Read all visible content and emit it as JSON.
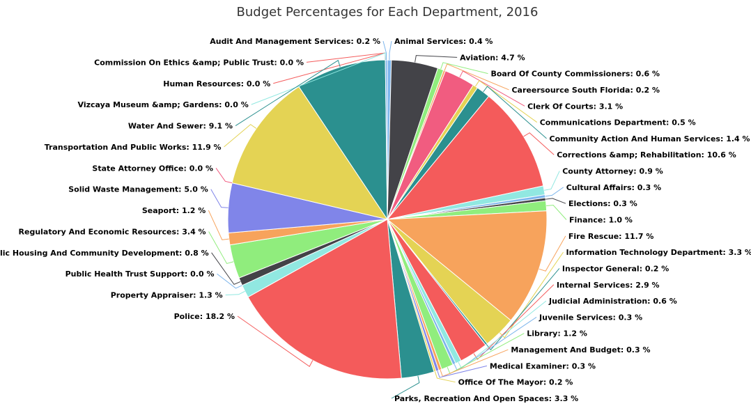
{
  "chart_data": {
    "type": "pie",
    "title": "Budget Percentages for Each Department, 2016",
    "unit": "%",
    "slices": [
      {
        "name": "Animal Services",
        "value": 0.4,
        "color": "#7cb5ec"
      },
      {
        "name": "Aviation",
        "value": 4.7,
        "color": "#434348"
      },
      {
        "name": "Board Of County Commissioners",
        "value": 0.6,
        "color": "#90ed7d"
      },
      {
        "name": "Careersource South Florida",
        "value": 0.2,
        "color": "#f7a35c"
      },
      {
        "name": "Clerk Of Courts",
        "value": 3.1,
        "color": "#f15c80"
      },
      {
        "name": "Communications Department",
        "value": 0.5,
        "color": "#e4d354"
      },
      {
        "name": "Community Action And Human Services",
        "value": 1.4,
        "color": "#2b908f"
      },
      {
        "name": "Corrections &amp; Rehabilitation",
        "value": 10.6,
        "color": "#f45b5b"
      },
      {
        "name": "County Attorney",
        "value": 0.9,
        "color": "#91e8e1"
      },
      {
        "name": "Cultural Affairs",
        "value": 0.3,
        "color": "#7cb5ec"
      },
      {
        "name": "Elections",
        "value": 0.3,
        "color": "#434348"
      },
      {
        "name": "Finance",
        "value": 1.0,
        "color": "#90ed7d"
      },
      {
        "name": "Fire Rescue",
        "value": 11.7,
        "color": "#f7a35c"
      },
      {
        "name": "Information Technology Department",
        "value": 3.3,
        "color": "#e4d354"
      },
      {
        "name": "Inspector General",
        "value": 0.2,
        "color": "#2b908f"
      },
      {
        "name": "Internal Services",
        "value": 2.9,
        "color": "#f45b5b"
      },
      {
        "name": "Judicial Administration",
        "value": 0.6,
        "color": "#91e8e1"
      },
      {
        "name": "Juvenile Services",
        "value": 0.3,
        "color": "#7cb5ec"
      },
      {
        "name": "Library",
        "value": 1.2,
        "color": "#90ed7d"
      },
      {
        "name": "Management And Budget",
        "value": 0.3,
        "color": "#f7a35c"
      },
      {
        "name": "Medical Examiner",
        "value": 0.3,
        "color": "#8085e9"
      },
      {
        "name": "Office Of The Mayor",
        "value": 0.2,
        "color": "#e4d354"
      },
      {
        "name": "Parks, Recreation And Open Spaces",
        "value": 3.3,
        "color": "#2b908f"
      },
      {
        "name": "Police",
        "value": 18.2,
        "color": "#f45b5b"
      },
      {
        "name": "Property Appraiser",
        "value": 1.3,
        "color": "#91e8e1"
      },
      {
        "name": "Public Health Trust Support",
        "value": 0.0,
        "color": "#7cb5ec"
      },
      {
        "name": "Public Housing And Community Development",
        "value": 0.8,
        "color": "#434348"
      },
      {
        "name": "Regulatory And Economic Resources",
        "value": 3.4,
        "color": "#90ed7d"
      },
      {
        "name": "Seaport",
        "value": 1.2,
        "color": "#f7a35c"
      },
      {
        "name": "Solid Waste Management",
        "value": 5.0,
        "color": "#8085e9"
      },
      {
        "name": "State Attorney Office",
        "value": 0.0,
        "color": "#f15c80"
      },
      {
        "name": "Transportation And Public Works",
        "value": 11.9,
        "color": "#e4d354"
      },
      {
        "name": "Water And Sewer",
        "value": 9.1,
        "color": "#2b908f"
      },
      {
        "name": "Commission On Ethics &amp; Public Trust",
        "value": 0.0,
        "color": "#f45b5b"
      },
      {
        "name": "Human Resources",
        "value": 0.0,
        "color": "#f45b5b"
      },
      {
        "name": "Vizcaya Museum &amp; Gardens",
        "value": 0.0,
        "color": "#91e8e1"
      },
      {
        "name": "Audit And Management Services",
        "value": 0.2,
        "color": "#7cb5ec"
      }
    ]
  }
}
